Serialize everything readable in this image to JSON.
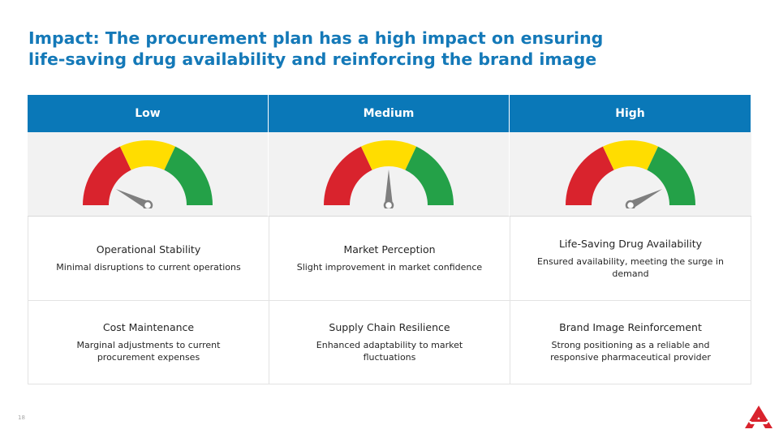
{
  "title": {
    "line1": "Impact: The procurement plan has a high impact on ensuring",
    "line2": "life-saving drug availability and reinforcing the brand image"
  },
  "columns": [
    {
      "header": "Low",
      "needle_level": 0.15,
      "rows": [
        {
          "title": "Operational Stability",
          "desc": "Minimal disruptions to current operations"
        },
        {
          "title": "Cost Maintenance",
          "desc": "Marginal adjustments to current procurement expenses"
        }
      ]
    },
    {
      "header": "Medium",
      "needle_level": 0.5,
      "rows": [
        {
          "title": "Market Perception",
          "desc": "Slight improvement in market confidence"
        },
        {
          "title": "Supply Chain Resilience",
          "desc": "Enhanced adaptability to market fluctuations"
        }
      ]
    },
    {
      "header": "High",
      "needle_level": 0.85,
      "rows": [
        {
          "title": "Life-Saving Drug Availability",
          "desc": "Ensured availability, meeting the surge in demand"
        },
        {
          "title": "Brand Image Reinforcement",
          "desc": "Strong positioning as a reliable and responsive pharmaceutical provider"
        }
      ]
    }
  ],
  "gauge_colors": {
    "red": "#d9232d",
    "yellow": "#ffdd00",
    "green": "#24a148",
    "needle": "#7f7f7f"
  },
  "header_color": "#0a78b8",
  "title_color": "#1479b8",
  "page_number": "18",
  "logo_icon": "triangle-logo-icon"
}
